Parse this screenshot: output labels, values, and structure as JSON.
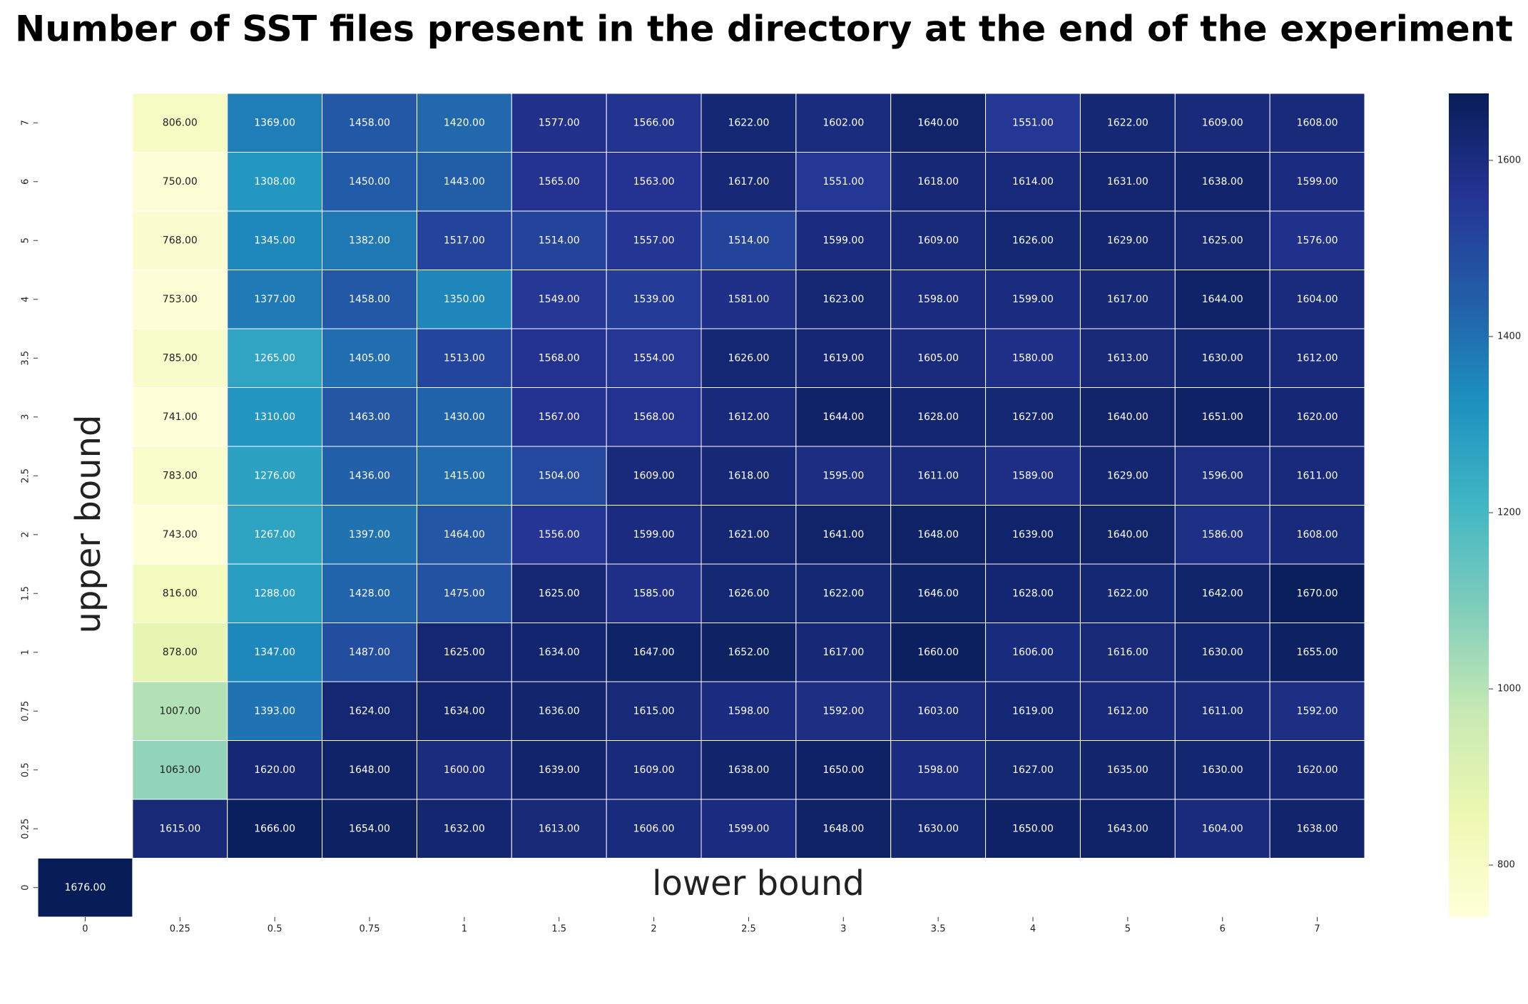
{
  "chart_data": {
    "type": "heatmap",
    "title": "Number of SST files present in the directory at the end of the experiment",
    "xlabel": "lower bound",
    "ylabel": "upper bound",
    "x_categories": [
      "0",
      "0.25",
      "0.5",
      "0.75",
      "1",
      "1.5",
      "2",
      "2.5",
      "3",
      "3.5",
      "4",
      "5",
      "6",
      "7"
    ],
    "y_categories": [
      "7",
      "6",
      "5",
      "4",
      "3.5",
      "3",
      "2.5",
      "2",
      "1.5",
      "1",
      "0.75",
      "0.5",
      "0.25",
      "0"
    ],
    "values": [
      [
        null,
        806,
        1369,
        1458,
        1420,
        1577,
        1566,
        1622,
        1602,
        1640,
        1551,
        1622,
        1609,
        1608
      ],
      [
        null,
        750,
        1308,
        1450,
        1443,
        1565,
        1563,
        1617,
        1551,
        1618,
        1614,
        1631,
        1638,
        1599
      ],
      [
        null,
        768,
        1345,
        1382,
        1517,
        1514,
        1557,
        1514,
        1599,
        1609,
        1626,
        1629,
        1625,
        1576
      ],
      [
        null,
        753,
        1377,
        1458,
        1350,
        1549,
        1539,
        1581,
        1623,
        1598,
        1599,
        1617,
        1644,
        1604
      ],
      [
        null,
        785,
        1265,
        1405,
        1513,
        1568,
        1554,
        1626,
        1619,
        1605,
        1580,
        1613,
        1630,
        1612
      ],
      [
        null,
        741,
        1310,
        1463,
        1430,
        1567,
        1568,
        1612,
        1644,
        1628,
        1627,
        1640,
        1651,
        1620
      ],
      [
        null,
        783,
        1276,
        1436,
        1415,
        1504,
        1609,
        1618,
        1595,
        1611,
        1589,
        1629,
        1596,
        1611
      ],
      [
        null,
        743,
        1267,
        1397,
        1464,
        1556,
        1599,
        1621,
        1641,
        1648,
        1639,
        1640,
        1586,
        1608
      ],
      [
        null,
        816,
        1288,
        1428,
        1475,
        1625,
        1585,
        1626,
        1622,
        1646,
        1628,
        1622,
        1642,
        1670
      ],
      [
        null,
        878,
        1347,
        1487,
        1625,
        1634,
        1647,
        1652,
        1617,
        1660,
        1606,
        1616,
        1630,
        1655
      ],
      [
        null,
        1007,
        1393,
        1624,
        1634,
        1636,
        1615,
        1598,
        1592,
        1603,
        1619,
        1612,
        1611,
        1592
      ],
      [
        null,
        1063,
        1620,
        1648,
        1600,
        1639,
        1609,
        1638,
        1650,
        1598,
        1627,
        1635,
        1630,
        1620
      ],
      [
        null,
        1615,
        1666,
        1654,
        1632,
        1613,
        1606,
        1599,
        1648,
        1630,
        1650,
        1643,
        1604,
        1638
      ],
      [
        1676,
        null,
        null,
        null,
        null,
        null,
        null,
        null,
        null,
        null,
        null,
        null,
        null,
        null
      ]
    ],
    "value_labels": [
      [
        null,
        "806.00",
        "1369.00",
        "1458.00",
        "1420.00",
        "1577.00",
        "1566.00",
        "1622.00",
        "1602.00",
        "1640.00",
        "1551.00",
        "1622.00",
        "1609.00",
        "1608.00"
      ],
      [
        null,
        "750.00",
        "1308.00",
        "1450.00",
        "1443.00",
        "1565.00",
        "1563.00",
        "1617.00",
        "1551.00",
        "1618.00",
        "1614.00",
        "1631.00",
        "1638.00",
        "1599.00"
      ],
      [
        null,
        "768.00",
        "1345.00",
        "1382.00",
        "1517.00",
        "1514.00",
        "1557.00",
        "1514.00",
        "1599.00",
        "1609.00",
        "1626.00",
        "1629.00",
        "1625.00",
        "1576.00"
      ],
      [
        null,
        "753.00",
        "1377.00",
        "1458.00",
        "1350.00",
        "1549.00",
        "1539.00",
        "1581.00",
        "1623.00",
        "1598.00",
        "1599.00",
        "1617.00",
        "1644.00",
        "1604.00"
      ],
      [
        null,
        "785.00",
        "1265.00",
        "1405.00",
        "1513.00",
        "1568.00",
        "1554.00",
        "1626.00",
        "1619.00",
        "1605.00",
        "1580.00",
        "1613.00",
        "1630.00",
        "1612.00"
      ],
      [
        null,
        "741.00",
        "1310.00",
        "1463.00",
        "1430.00",
        "1567.00",
        "1568.00",
        "1612.00",
        "1644.00",
        "1628.00",
        "1627.00",
        "1640.00",
        "1651.00",
        "1620.00"
      ],
      [
        null,
        "783.00",
        "1276.00",
        "1436.00",
        "1415.00",
        "1504.00",
        "1609.00",
        "1618.00",
        "1595.00",
        "1611.00",
        "1589.00",
        "1629.00",
        "1596.00",
        "1611.00"
      ],
      [
        null,
        "743.00",
        "1267.00",
        "1397.00",
        "1464.00",
        "1556.00",
        "1599.00",
        "1621.00",
        "1641.00",
        "1648.00",
        "1639.00",
        "1640.00",
        "1586.00",
        "1608.00"
      ],
      [
        null,
        "816.00",
        "1288.00",
        "1428.00",
        "1475.00",
        "1625.00",
        "1585.00",
        "1626.00",
        "1622.00",
        "1646.00",
        "1628.00",
        "1622.00",
        "1642.00",
        "1670.00"
      ],
      [
        null,
        "878.00",
        "1347.00",
        "1487.00",
        "1625.00",
        "1634.00",
        "1647.00",
        "1652.00",
        "1617.00",
        "1660.00",
        "1606.00",
        "1616.00",
        "1630.00",
        "1655.00"
      ],
      [
        null,
        "1007.00",
        "1393.00",
        "1624.00",
        "1634.00",
        "1636.00",
        "1615.00",
        "1598.00",
        "1592.00",
        "1603.00",
        "1619.00",
        "1612.00",
        "1611.00",
        "1592.00"
      ],
      [
        null,
        "1063.00",
        "1620.00",
        "1648.00",
        "1600.00",
        "1639.00",
        "1609.00",
        "1638.00",
        "1650.00",
        "1598.00",
        "1627.00",
        "1635.00",
        "1630.00",
        "1620.00"
      ],
      [
        null,
        "1615.00",
        "1666.00",
        "1654.00",
        "1632.00",
        "1613.00",
        "1606.00",
        "1599.00",
        "1648.00",
        "1630.00",
        "1650.00",
        "1643.00",
        "1604.00",
        "1638.00"
      ],
      [
        "1676.00",
        null,
        null,
        null,
        null,
        null,
        null,
        null,
        null,
        null,
        null,
        null,
        null,
        null
      ]
    ],
    "colormap": "YlGnBu",
    "clim": [
      741,
      1676
    ],
    "cticks": [
      800,
      1000,
      1200,
      1400,
      1600
    ]
  }
}
